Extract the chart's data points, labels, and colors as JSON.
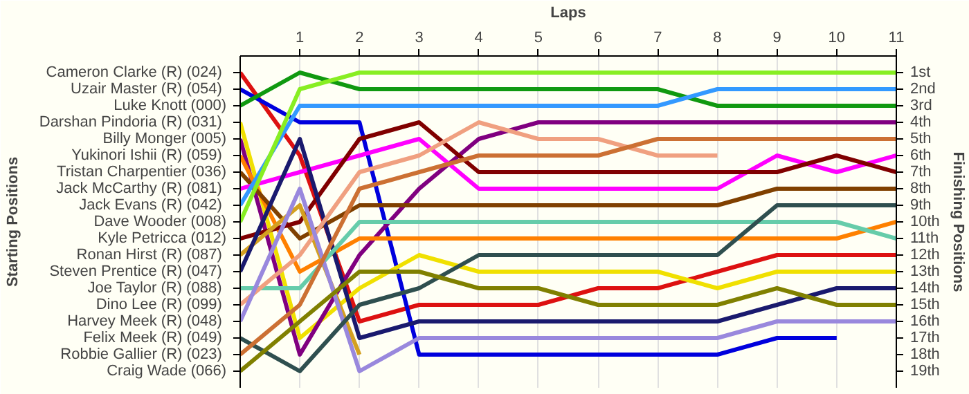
{
  "chart_data": {
    "type": "line",
    "xlabel": "Laps",
    "y2label": "Finishing Positions",
    "x": [
      0,
      1,
      2,
      3,
      4,
      5,
      6,
      7,
      8,
      9,
      10,
      11
    ],
    "xlim": [
      0,
      11
    ],
    "xticks": [
      1,
      2,
      3,
      4,
      5,
      6,
      7,
      8,
      9,
      10,
      11
    ],
    "annotations": [
      "Cameron Clarke  (R) (024)",
      "Uzair Master  (R) (054)",
      "Luke Knott (000)",
      "Darshan Pindoria  (R) (031)",
      "Billy Monger (005)",
      "Yukinori Ishii  (R) (059)",
      "Tristan Charpentier (036)",
      "Jack McCarthy  (R) (081)",
      "Jack Evans  (R) (042)",
      "Dave Wooder (008)",
      "Kyle Petricca (012)",
      "Ronan Hirst  (R) (087)",
      "Steven Prentice  (R) (047)",
      "Joe Taylor  (R) (088)",
      "Dino Lee  (R) (099)",
      "Harvey Meek  (R) (048)",
      "Felix Meek  (R) (049)",
      "Robbie Gallier  (R) (023)",
      "Craig Wade (066)",
      "Starting Positions"
    ],
    "y2lim": [
      20,
      0
    ],
    "y2ticks": [
      {
        "value": 1,
        "label": "1st"
      },
      {
        "value": 2,
        "label": "2nd"
      },
      {
        "value": 3,
        "label": "3rd"
      },
      {
        "value": 4,
        "label": "4th"
      },
      {
        "value": 5,
        "label": "5th"
      },
      {
        "value": 6,
        "label": "6th"
      },
      {
        "value": 7,
        "label": "7th"
      },
      {
        "value": 8,
        "label": "8th"
      },
      {
        "value": 9,
        "label": "9th"
      },
      {
        "value": 10,
        "label": "10th"
      },
      {
        "value": 11,
        "label": "11th"
      },
      {
        "value": 12,
        "label": "12th"
      },
      {
        "value": 13,
        "label": "13th"
      },
      {
        "value": 14,
        "label": "14th"
      },
      {
        "value": 15,
        "label": "15th"
      },
      {
        "value": 16,
        "label": "16th"
      },
      {
        "value": 17,
        "label": "17th"
      },
      {
        "value": 18,
        "label": "18th"
      },
      {
        "value": 19,
        "label": "19th"
      }
    ],
    "grid": true,
    "marker": "none",
    "line_style": "solid",
    "series": [
      {
        "axis": "y2",
        "color": "#dd1111",
        "values": [
          1,
          6,
          16,
          15,
          15,
          15,
          14,
          14,
          13,
          12,
          12,
          12
        ]
      },
      {
        "axis": "y2",
        "color": "#0000dd",
        "values": [
          2,
          4,
          4,
          18,
          18,
          18,
          18,
          18,
          18,
          17,
          17,
          null
        ]
      },
      {
        "axis": "y2",
        "color": "#109910",
        "values": [
          3,
          1,
          2,
          2,
          2,
          2,
          2,
          2,
          3,
          3,
          3,
          3
        ]
      },
      {
        "axis": "y2",
        "color": "#f0e000",
        "values": [
          4,
          17,
          14,
          12,
          13,
          13,
          13,
          13,
          14,
          13,
          13,
          13
        ]
      },
      {
        "axis": "y2",
        "color": "#800080",
        "values": [
          5,
          18,
          12,
          8,
          5,
          4,
          4,
          4,
          4,
          4,
          4,
          4
        ]
      },
      {
        "axis": "y2",
        "color": "#ff8000",
        "values": [
          6,
          13,
          11,
          11,
          11,
          11,
          11,
          11,
          11,
          11,
          11,
          10
        ]
      },
      {
        "axis": "y2",
        "color": "#804000",
        "values": [
          7,
          11,
          9,
          9,
          9,
          9,
          9,
          9,
          9,
          8,
          8,
          8
        ]
      },
      {
        "axis": "y2",
        "color": "#ff00ff",
        "values": [
          8,
          7,
          6,
          5,
          8,
          8,
          8,
          8,
          8,
          6,
          7,
          6
        ]
      },
      {
        "axis": "y2",
        "color": "#3399ff",
        "values": [
          9,
          3,
          3,
          3,
          3,
          3,
          3,
          3,
          2,
          2,
          2,
          2
        ]
      },
      {
        "axis": "y2",
        "color": "#88ee22",
        "values": [
          10,
          2,
          1,
          1,
          1,
          1,
          1,
          1,
          1,
          1,
          1,
          1
        ]
      },
      {
        "axis": "y2",
        "color": "#800000",
        "values": [
          11,
          10,
          5,
          4,
          7,
          7,
          7,
          7,
          7,
          7,
          6,
          7
        ]
      },
      {
        "axis": "y2",
        "color": "#d4a020",
        "values": [
          12,
          9,
          18,
          null,
          null,
          null,
          null,
          null,
          null,
          null,
          null,
          null
        ]
      },
      {
        "axis": "y2",
        "color": "#1a1a6e",
        "values": [
          13,
          5,
          17,
          16,
          16,
          16,
          16,
          16,
          16,
          15,
          14,
          14
        ]
      },
      {
        "axis": "y2",
        "color": "#66ccaa",
        "values": [
          14,
          14,
          10,
          10,
          10,
          10,
          10,
          10,
          10,
          10,
          10,
          11
        ]
      },
      {
        "axis": "y2",
        "color": "#f0a080",
        "values": [
          15,
          12,
          7,
          6,
          4,
          5,
          5,
          6,
          6,
          null,
          null,
          null
        ]
      },
      {
        "axis": "y2",
        "color": "#9988dd",
        "values": [
          16,
          8,
          19,
          17,
          17,
          17,
          17,
          17,
          17,
          16,
          16,
          16
        ]
      },
      {
        "axis": "y2",
        "color": "#2f4f4f",
        "values": [
          17,
          19,
          15,
          14,
          12,
          12,
          12,
          12,
          12,
          9,
          9,
          9
        ]
      },
      {
        "axis": "y2",
        "color": "#cc7033",
        "values": [
          18,
          15,
          8,
          7,
          6,
          6,
          6,
          5,
          5,
          5,
          5,
          5
        ]
      },
      {
        "axis": "y2",
        "color": "#808000",
        "values": [
          19,
          16,
          13,
          13,
          14,
          14,
          15,
          15,
          15,
          14,
          15,
          15
        ]
      }
    ]
  }
}
